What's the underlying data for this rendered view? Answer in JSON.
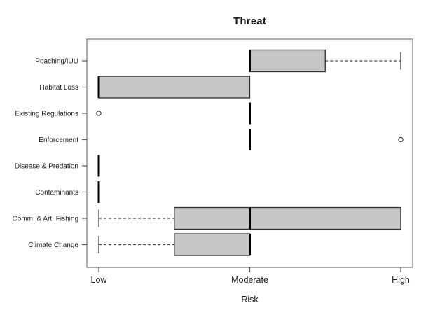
{
  "chart_data": {
    "type": "boxplot",
    "orientation": "horizontal",
    "title": "Threat",
    "xlabel": "Risk",
    "ylabel": "",
    "xlim": [
      1,
      3
    ],
    "grid": false,
    "legend": "none",
    "x_ticks": [
      {
        "value": 1,
        "label": "Low"
      },
      {
        "value": 2,
        "label": "Moderate"
      },
      {
        "value": 3,
        "label": "High"
      }
    ],
    "series": [
      {
        "category": "Poaching/IUU",
        "whisker_min": 2,
        "q1": 2,
        "median": 2,
        "q3": 2.5,
        "whisker_max": 3,
        "outliers": []
      },
      {
        "category": "Habitat Loss",
        "whisker_min": 1,
        "q1": 1,
        "median": 1,
        "q3": 2,
        "whisker_max": 2,
        "outliers": []
      },
      {
        "category": "Existing Regulations",
        "whisker_min": 2,
        "q1": 2,
        "median": 2,
        "q3": 2,
        "whisker_max": 2,
        "outliers": [
          1
        ]
      },
      {
        "category": "Enforcement",
        "whisker_min": 2,
        "q1": 2,
        "median": 2,
        "q3": 2,
        "whisker_max": 2,
        "outliers": [
          3
        ]
      },
      {
        "category": "Disease & Predation",
        "whisker_min": 1,
        "q1": 1,
        "median": 1,
        "q3": 1,
        "whisker_max": 1,
        "outliers": []
      },
      {
        "category": "Contaminants",
        "whisker_min": 1,
        "q1": 1,
        "median": 1,
        "q3": 1,
        "whisker_max": 1,
        "outliers": []
      },
      {
        "category": "Comm. & Art. Fishing",
        "whisker_min": 1,
        "q1": 1.5,
        "median": 2,
        "q3": 3,
        "whisker_max": 3,
        "outliers": []
      },
      {
        "category": "Climate Change",
        "whisker_min": 1,
        "q1": 1.5,
        "median": 2,
        "q3": 2,
        "whisker_max": 2,
        "outliers": []
      }
    ],
    "colors": {
      "background": "#ffffff",
      "box_fill": "#c6c6c6",
      "box_border": "#2e2e2e",
      "median": "#000000",
      "whisker": "#4a4a4a",
      "frame": "#7a7a7a",
      "tick": "#555555",
      "text": "#1c1c1c"
    }
  }
}
